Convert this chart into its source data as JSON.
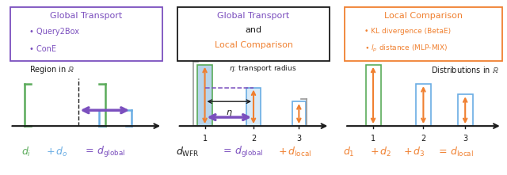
{
  "green": "#5aab5a",
  "blue": "#6aade4",
  "blue_fill": "#b8d4ea",
  "purple": "#7b4fbe",
  "orange": "#f08030",
  "black": "#1a1a1a",
  "gray": "#888888",
  "white": "#ffffff",
  "panel1": {
    "box_color": "#7b4fbe",
    "title": "Global Transport",
    "bullets": [
      "Query2Box",
      "ConE"
    ],
    "subtitle": "Region in ℝ"
  },
  "panel2": {
    "box_color": "#1a1a1a",
    "title1": "Global Transport",
    "title2": "and",
    "title3": "Local Comparison",
    "eta_text": "η: transport radius",
    "eta_sym": "η"
  },
  "panel3": {
    "box_color": "#f08030",
    "title": "Local Comparison",
    "bullet1": "KL divergence (BetaE)",
    "bullet2_pre": "• ",
    "bullet2": "l_p distance (MLP-MIX)",
    "subtitle": "Distributions in ℝ"
  }
}
